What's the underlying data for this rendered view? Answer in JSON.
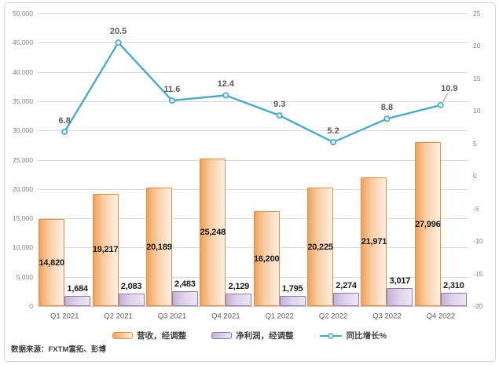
{
  "chart_data": {
    "type": "combo",
    "title": "",
    "categories": [
      "Q1 2021",
      "Q2 2021",
      "Q3 2021",
      "Q4 2021",
      "Q1 2022",
      "Q2 2022",
      "Q3 2022",
      "Q4 2022"
    ],
    "series": [
      {
        "name": "营收，经调整",
        "type": "bar",
        "axis": "left",
        "values": [
          14820,
          19217,
          20189,
          25248,
          16200,
          20225,
          21971,
          27996
        ],
        "labels": [
          "14,820",
          "19,217",
          "20,189",
          "25,248",
          "16,200",
          "20,225",
          "21,971",
          "27,996"
        ]
      },
      {
        "name": "净利润，经调整",
        "type": "bar",
        "axis": "left",
        "values": [
          1684,
          2083,
          2483,
          2129,
          1795,
          2274,
          3017,
          2310
        ],
        "labels": [
          "1,684",
          "2,083",
          "2,483",
          "2,129",
          "1,795",
          "2,274",
          "3,017",
          "2,310"
        ]
      },
      {
        "name": "同比增长%",
        "type": "line",
        "axis": "right",
        "values": [
          6.8,
          20.5,
          11.6,
          12.4,
          9.3,
          5.2,
          8.8,
          10.9
        ],
        "labels": [
          "6.8",
          "20.5",
          "11.6",
          "12.4",
          "9.3",
          "5.2",
          "8.8",
          "10.9"
        ]
      }
    ],
    "left_axis": {
      "min": 0,
      "max": 50000,
      "tick_labels": [
        "50,000",
        "45,000",
        "40,000",
        "35,000",
        "30,000",
        "25,000",
        "20,000",
        "15,000",
        "10,000",
        "5,000",
        "0"
      ]
    },
    "right_axis": {
      "min": -20,
      "max": 25,
      "tick_labels": [
        "25",
        "20",
        "15",
        "10",
        "5",
        "0",
        "-5",
        "-10",
        "-15",
        "-20"
      ]
    },
    "grid": true,
    "legend_position": "bottom",
    "source": "数据来源：FXTM富拓、彭博",
    "colors": {
      "revenue_fill_start": "#F1A15B",
      "revenue_fill_mid": "#F8CDA1",
      "revenue_fill_end": "#FDF0E4",
      "revenue_border": "#E78F3F",
      "profit_fill_start": "#C4B1D9",
      "profit_fill_mid": "#DDD2EB",
      "profit_fill_end": "#EDE7F6",
      "profit_border": "#8E7BAC",
      "line": "#44A9C9",
      "marker_fill": "#DCEFF6",
      "grid": "#DBDBDB",
      "axis_text": "#7F7F7F",
      "category_text": "#595959",
      "bar_label_text": "#1A1A1A",
      "line_label_text": "#595959"
    }
  }
}
